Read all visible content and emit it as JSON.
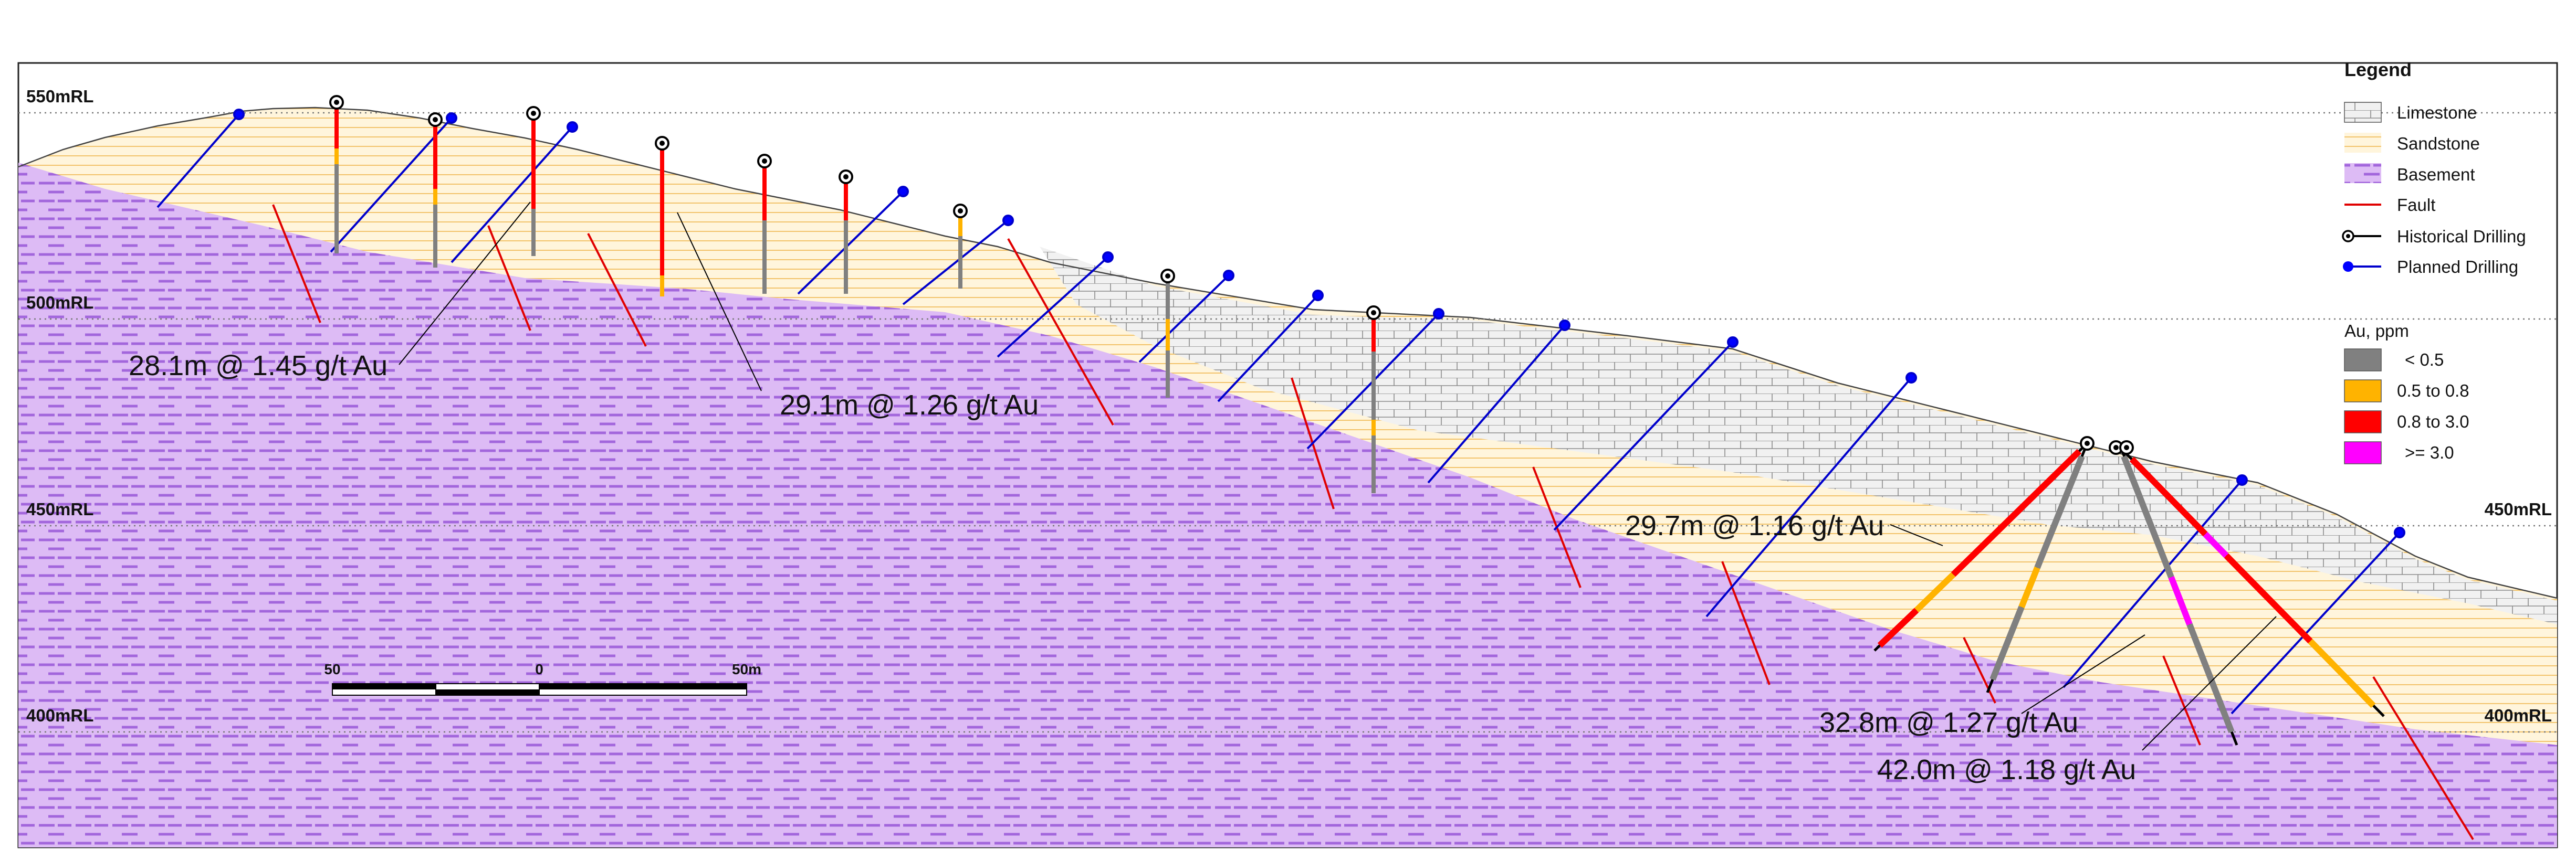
{
  "section": {
    "levels": [
      {
        "label": "550mRL",
        "elevation": 550,
        "right_label": ""
      },
      {
        "label": "500mRL",
        "elevation": 500,
        "right_label": ""
      },
      {
        "label": "450mRL",
        "elevation": 450,
        "right_label": "450mRL"
      },
      {
        "label": "400mRL",
        "elevation": 400,
        "right_label": "400mRL"
      }
    ]
  },
  "annotations": [
    {
      "id": "a1",
      "text": "28.1m @ 1.45 g/t Au"
    },
    {
      "id": "a2",
      "text": "29.1m @ 1.26 g/t Au"
    },
    {
      "id": "a3",
      "text": "29.7m @ 1.16 g/t Au"
    },
    {
      "id": "a4",
      "text": "32.8m @ 1.27 g/t Au"
    },
    {
      "id": "a5",
      "text": "42.0m @ 1.18 g/t Au"
    }
  ],
  "scale_bar": {
    "labels": [
      "50",
      "0",
      "50m"
    ]
  },
  "legend": {
    "title": "Legend",
    "items": [
      {
        "key": "limestone",
        "label": "Limestone"
      },
      {
        "key": "sandstone",
        "label": "Sandstone"
      },
      {
        "key": "basement",
        "label": "Basement"
      },
      {
        "key": "fault",
        "label": "Fault"
      },
      {
        "key": "historical",
        "label": "Historical Drilling"
      },
      {
        "key": "planned",
        "label": "Planned Drilling"
      }
    ],
    "grade_title": "Au, ppm",
    "grades": [
      {
        "label": "< 0.5",
        "color": "#808080"
      },
      {
        "label": "0.5 to 0.8",
        "color": "#FFB300"
      },
      {
        "label": "0.8 to 3.0",
        "color": "#FF0000"
      },
      {
        "label": ">= 3.0",
        "color": "#FF00FF"
      }
    ]
  },
  "colors": {
    "limestone_fill": "#F1F1F1",
    "sandstone_fill": "#FFF5DC",
    "basement_fill": "#DDBBF5",
    "fault": "#E00000",
    "planned_drilling": "#0000CC",
    "historical_drilling": "#000000"
  }
}
